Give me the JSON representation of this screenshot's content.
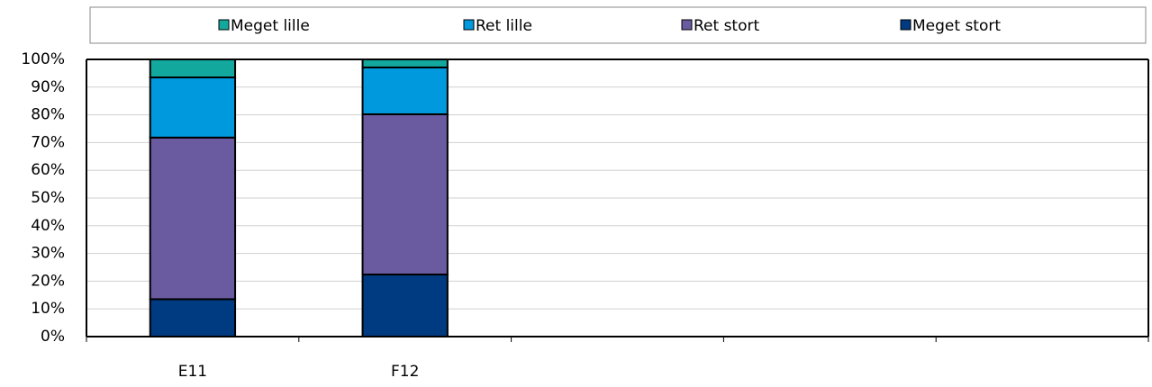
{
  "chart_data": {
    "type": "stacked_bar",
    "categories": [
      "E11",
      "F12",
      null,
      null,
      null
    ],
    "series": [
      {
        "name": "Meget lille",
        "color": "#13a89e",
        "values": [
          6.5,
          2.9,
          null,
          null,
          null
        ]
      },
      {
        "name": "Ret lille",
        "color": "#0099dd",
        "values": [
          21.7,
          16.9,
          null,
          null,
          null
        ]
      },
      {
        "name": "Ret stort",
        "color": "#6a5ba0",
        "values": [
          58.3,
          57.8,
          null,
          null,
          null
        ]
      },
      {
        "name": "Meget stort",
        "color": "#003a80",
        "values": [
          13.5,
          22.4,
          null,
          null,
          null
        ]
      }
    ],
    "ylim": [
      0,
      100
    ],
    "yticks": [
      {
        "value": 0,
        "label": "0%"
      },
      {
        "value": 10,
        "label": "10%"
      },
      {
        "value": 20,
        "label": "20%"
      },
      {
        "value": 30,
        "label": "30%"
      },
      {
        "value": 40,
        "label": "40%"
      },
      {
        "value": 50,
        "label": "50%"
      },
      {
        "value": 60,
        "label": "60%"
      },
      {
        "value": 70,
        "label": "70%"
      },
      {
        "value": 80,
        "label": "80%"
      },
      {
        "value": 90,
        "label": "90%"
      },
      {
        "value": 100,
        "label": "100%"
      }
    ],
    "grid": true,
    "legend": "top"
  }
}
